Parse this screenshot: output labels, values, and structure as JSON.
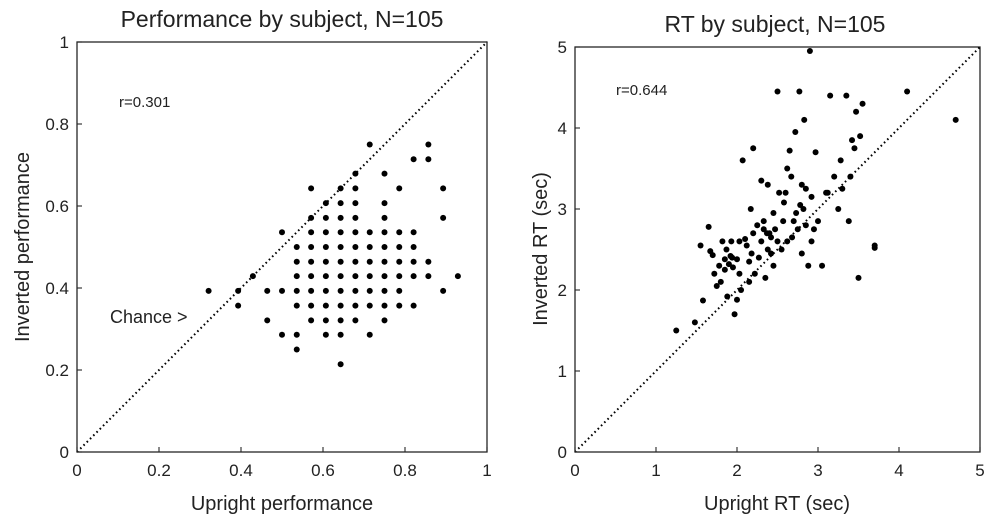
{
  "chart_data": [
    {
      "type": "scatter",
      "title": "Performance by subject, N=105",
      "xlabel": "Upright performance",
      "ylabel": "Inverted performance",
      "xlim": [
        0,
        1
      ],
      "ylim": [
        0,
        1
      ],
      "xticks": [
        "0",
        "0.2",
        "0.4",
        "0.6",
        "0.8",
        "1"
      ],
      "yticks": [
        "0",
        "0.2",
        "0.4",
        "0.6",
        "0.8",
        "1"
      ],
      "grid": false,
      "reference_line": "y = x (dotted)",
      "annotations": [
        {
          "text": "r=0.301",
          "x": 0.1,
          "y": 0.86
        },
        {
          "text": "Chance >",
          "x": 0.08,
          "y": 0.32
        }
      ],
      "points": [
        [
          0.321,
          0.393
        ],
        [
          0.393,
          0.393
        ],
        [
          0.393,
          0.357
        ],
        [
          0.429,
          0.429
        ],
        [
          0.464,
          0.321
        ],
        [
          0.464,
          0.393
        ],
        [
          0.5,
          0.536
        ],
        [
          0.5,
          0.393
        ],
        [
          0.5,
          0.286
        ],
        [
          0.536,
          0.5
        ],
        [
          0.536,
          0.464
        ],
        [
          0.536,
          0.429
        ],
        [
          0.536,
          0.393
        ],
        [
          0.536,
          0.357
        ],
        [
          0.536,
          0.286
        ],
        [
          0.536,
          0.25
        ],
        [
          0.571,
          0.643
        ],
        [
          0.571,
          0.571
        ],
        [
          0.571,
          0.536
        ],
        [
          0.571,
          0.5
        ],
        [
          0.571,
          0.464
        ],
        [
          0.571,
          0.429
        ],
        [
          0.571,
          0.393
        ],
        [
          0.571,
          0.357
        ],
        [
          0.571,
          0.321
        ],
        [
          0.607,
          0.607
        ],
        [
          0.607,
          0.571
        ],
        [
          0.607,
          0.536
        ],
        [
          0.607,
          0.5
        ],
        [
          0.607,
          0.464
        ],
        [
          0.607,
          0.429
        ],
        [
          0.607,
          0.393
        ],
        [
          0.607,
          0.357
        ],
        [
          0.607,
          0.321
        ],
        [
          0.607,
          0.286
        ],
        [
          0.643,
          0.643
        ],
        [
          0.643,
          0.607
        ],
        [
          0.643,
          0.571
        ],
        [
          0.643,
          0.536
        ],
        [
          0.643,
          0.5
        ],
        [
          0.643,
          0.464
        ],
        [
          0.643,
          0.429
        ],
        [
          0.643,
          0.393
        ],
        [
          0.643,
          0.357
        ],
        [
          0.643,
          0.321
        ],
        [
          0.643,
          0.286
        ],
        [
          0.643,
          0.214
        ],
        [
          0.679,
          0.679
        ],
        [
          0.679,
          0.643
        ],
        [
          0.679,
          0.607
        ],
        [
          0.679,
          0.571
        ],
        [
          0.679,
          0.536
        ],
        [
          0.679,
          0.5
        ],
        [
          0.679,
          0.464
        ],
        [
          0.679,
          0.429
        ],
        [
          0.679,
          0.393
        ],
        [
          0.679,
          0.357
        ],
        [
          0.679,
          0.321
        ],
        [
          0.714,
          0.75
        ],
        [
          0.714,
          0.536
        ],
        [
          0.714,
          0.5
        ],
        [
          0.714,
          0.464
        ],
        [
          0.714,
          0.429
        ],
        [
          0.714,
          0.393
        ],
        [
          0.714,
          0.357
        ],
        [
          0.714,
          0.286
        ],
        [
          0.75,
          0.679
        ],
        [
          0.75,
          0.607
        ],
        [
          0.75,
          0.571
        ],
        [
          0.75,
          0.536
        ],
        [
          0.75,
          0.5
        ],
        [
          0.75,
          0.464
        ],
        [
          0.75,
          0.429
        ],
        [
          0.75,
          0.393
        ],
        [
          0.75,
          0.357
        ],
        [
          0.75,
          0.321
        ],
        [
          0.786,
          0.643
        ],
        [
          0.786,
          0.536
        ],
        [
          0.786,
          0.5
        ],
        [
          0.786,
          0.464
        ],
        [
          0.786,
          0.429
        ],
        [
          0.786,
          0.393
        ],
        [
          0.786,
          0.357
        ],
        [
          0.821,
          0.714
        ],
        [
          0.821,
          0.536
        ],
        [
          0.821,
          0.5
        ],
        [
          0.821,
          0.464
        ],
        [
          0.821,
          0.429
        ],
        [
          0.821,
          0.357
        ],
        [
          0.857,
          0.714
        ],
        [
          0.857,
          0.75
        ],
        [
          0.857,
          0.464
        ],
        [
          0.857,
          0.429
        ],
        [
          0.893,
          0.643
        ],
        [
          0.893,
          0.571
        ],
        [
          0.893,
          0.393
        ],
        [
          0.929,
          0.429
        ]
      ]
    },
    {
      "type": "scatter",
      "title": "RT by subject, N=105",
      "xlabel": "Upright RT (sec)",
      "ylabel": "Inverted RT (sec)",
      "xlim": [
        0,
        5
      ],
      "ylim": [
        0,
        5
      ],
      "xticks": [
        "0",
        "1",
        "2",
        "3",
        "4",
        "5"
      ],
      "yticks": [
        "0",
        "1",
        "2",
        "3",
        "4",
        "5"
      ],
      "grid": false,
      "reference_line": "y = x (dotted)",
      "annotations": [
        {
          "text": "r=0.644",
          "x": 0.5,
          "y": 4.4
        }
      ],
      "points": [
        [
          1.25,
          1.5
        ],
        [
          1.48,
          1.6
        ],
        [
          1.58,
          1.87
        ],
        [
          1.55,
          2.55
        ],
        [
          1.65,
          2.78
        ],
        [
          1.67,
          2.48
        ],
        [
          1.7,
          2.43
        ],
        [
          1.72,
          2.2
        ],
        [
          1.75,
          2.05
        ],
        [
          1.78,
          2.3
        ],
        [
          1.8,
          2.1
        ],
        [
          1.82,
          2.6
        ],
        [
          1.85,
          2.25
        ],
        [
          1.87,
          2.5
        ],
        [
          1.88,
          1.92
        ],
        [
          1.9,
          2.32
        ],
        [
          1.92,
          2.42
        ],
        [
          1.94,
          2.4
        ],
        [
          1.95,
          2.28
        ],
        [
          1.97,
          1.7
        ],
        [
          2.0,
          2.38
        ],
        [
          2.0,
          1.88
        ],
        [
          2.03,
          2.6
        ],
        [
          2.05,
          2.0
        ],
        [
          2.07,
          3.6
        ],
        [
          2.1,
          2.63
        ],
        [
          2.12,
          2.55
        ],
        [
          2.15,
          2.1
        ],
        [
          2.17,
          3.0
        ],
        [
          2.2,
          3.75
        ],
        [
          2.2,
          2.7
        ],
        [
          2.22,
          2.2
        ],
        [
          2.25,
          2.8
        ],
        [
          2.27,
          2.4
        ],
        [
          2.3,
          3.35
        ],
        [
          2.3,
          2.6
        ],
        [
          2.33,
          2.85
        ],
        [
          2.35,
          2.15
        ],
        [
          2.37,
          2.7
        ],
        [
          2.38,
          3.3
        ],
        [
          2.4,
          2.7
        ],
        [
          2.42,
          2.45
        ],
        [
          2.42,
          2.65
        ],
        [
          2.45,
          2.3
        ],
        [
          2.47,
          2.75
        ],
        [
          2.5,
          4.45
        ],
        [
          2.5,
          2.6
        ],
        [
          2.52,
          3.2
        ],
        [
          2.55,
          2.5
        ],
        [
          2.57,
          2.85
        ],
        [
          2.6,
          3.2
        ],
        [
          2.62,
          2.6
        ],
        [
          2.65,
          3.72
        ],
        [
          2.67,
          3.4
        ],
        [
          2.7,
          2.85
        ],
        [
          2.72,
          3.95
        ],
        [
          2.75,
          2.75
        ],
        [
          2.77,
          4.45
        ],
        [
          2.8,
          3.3
        ],
        [
          2.8,
          2.45
        ],
        [
          2.82,
          3.0
        ],
        [
          2.83,
          4.1
        ],
        [
          2.85,
          3.25
        ],
        [
          2.85,
          2.8
        ],
        [
          2.88,
          2.3
        ],
        [
          2.9,
          4.95
        ],
        [
          2.92,
          3.15
        ],
        [
          2.95,
          2.75
        ],
        [
          2.97,
          3.7
        ],
        [
          3.0,
          2.85
        ],
        [
          3.05,
          2.3
        ],
        [
          3.1,
          3.2
        ],
        [
          3.15,
          4.4
        ],
        [
          3.2,
          3.4
        ],
        [
          3.25,
          3.0
        ],
        [
          3.3,
          3.25
        ],
        [
          3.35,
          4.4
        ],
        [
          3.38,
          2.85
        ],
        [
          3.4,
          3.4
        ],
        [
          3.42,
          3.85
        ],
        [
          3.45,
          3.75
        ],
        [
          3.47,
          4.2
        ],
        [
          3.5,
          2.15
        ],
        [
          3.52,
          3.9
        ],
        [
          3.55,
          4.3
        ],
        [
          3.7,
          2.52
        ],
        [
          3.7,
          2.55
        ],
        [
          4.1,
          4.45
        ],
        [
          4.7,
          4.1
        ],
        [
          2.33,
          2.75
        ],
        [
          2.58,
          3.08
        ],
        [
          2.68,
          2.65
        ],
        [
          2.73,
          2.95
        ],
        [
          1.93,
          2.6
        ],
        [
          2.18,
          2.45
        ],
        [
          2.45,
          2.95
        ],
        [
          1.85,
          2.38
        ],
        [
          2.03,
          2.2
        ],
        [
          2.62,
          3.5
        ],
        [
          2.78,
          3.05
        ],
        [
          2.15,
          2.35
        ],
        [
          2.92,
          2.6
        ],
        [
          3.12,
          3.2
        ],
        [
          2.38,
          2.5
        ],
        [
          3.28,
          3.6
        ]
      ]
    }
  ]
}
